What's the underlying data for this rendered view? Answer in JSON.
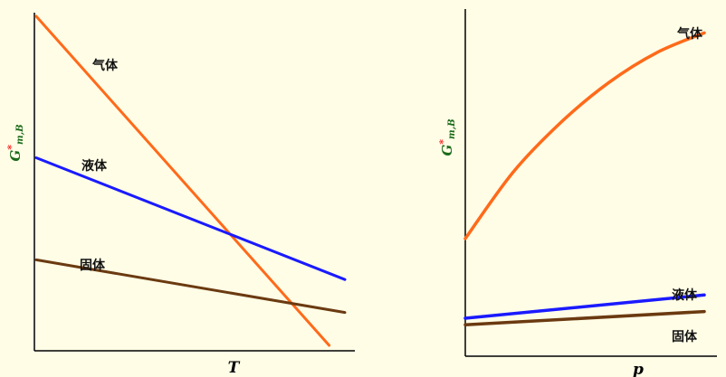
{
  "background": "#fffde6",
  "chart_data": [
    {
      "type": "line",
      "xlabel": "T",
      "ylabel": {
        "base": "G",
        "star": "*",
        "sub": "m,B"
      },
      "xlim": [
        0,
        10
      ],
      "ylim": [
        0,
        10
      ],
      "grid": false,
      "series": [
        {
          "name": "气体",
          "color": "#ff6a1a",
          "x": [
            0,
            9.3
          ],
          "y": [
            10,
            0
          ]
        },
        {
          "name": "液体",
          "color": "#1a1aff",
          "x": [
            0,
            9.8
          ],
          "y": [
            5.7,
            2.0
          ]
        },
        {
          "name": "固体",
          "color": "#6b3a10",
          "x": [
            0,
            9.8
          ],
          "y": [
            2.6,
            1.0
          ]
        }
      ]
    },
    {
      "type": "line",
      "xlabel": "p",
      "ylabel": {
        "base": "G",
        "star": "*",
        "sub": "m,B"
      },
      "xlim": [
        0,
        10
      ],
      "ylim": [
        0,
        10
      ],
      "grid": false,
      "series": [
        {
          "name": "气体",
          "color": "#ff6a1a",
          "x": [
            0,
            2,
            4,
            6,
            8,
            10
          ],
          "y": [
            3.3,
            5.3,
            6.8,
            8.0,
            8.9,
            9.5
          ]
        },
        {
          "name": "液体",
          "color": "#1a1aff",
          "x": [
            0,
            10
          ],
          "y": [
            0.9,
            1.6
          ]
        },
        {
          "name": "固体",
          "color": "#6b3a10",
          "x": [
            0,
            10
          ],
          "y": [
            0.7,
            1.1
          ]
        }
      ]
    }
  ]
}
